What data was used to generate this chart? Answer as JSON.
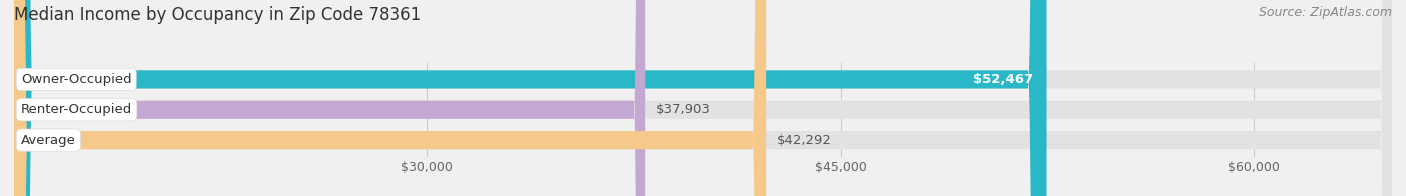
{
  "title": "Median Income by Occupancy in Zip Code 78361",
  "source": "Source: ZipAtlas.com",
  "categories": [
    "Owner-Occupied",
    "Renter-Occupied",
    "Average"
  ],
  "values": [
    52467,
    37903,
    42292
  ],
  "bar_colors": [
    "#29b8c8",
    "#c4a8d4",
    "#f5c98a"
  ],
  "value_labels": [
    "$52,467",
    "$37,903",
    "$42,292"
  ],
  "value_label_inside": [
    true,
    false,
    false
  ],
  "xlim": [
    15000,
    65000
  ],
  "xticks": [
    30000,
    45000,
    60000
  ],
  "xtick_labels": [
    "$30,000",
    "$45,000",
    "$60,000"
  ],
  "background_color": "#f0f0f0",
  "title_fontsize": 12,
  "source_fontsize": 9,
  "label_fontsize": 9.5,
  "value_fontsize": 9.5,
  "tick_fontsize": 9
}
